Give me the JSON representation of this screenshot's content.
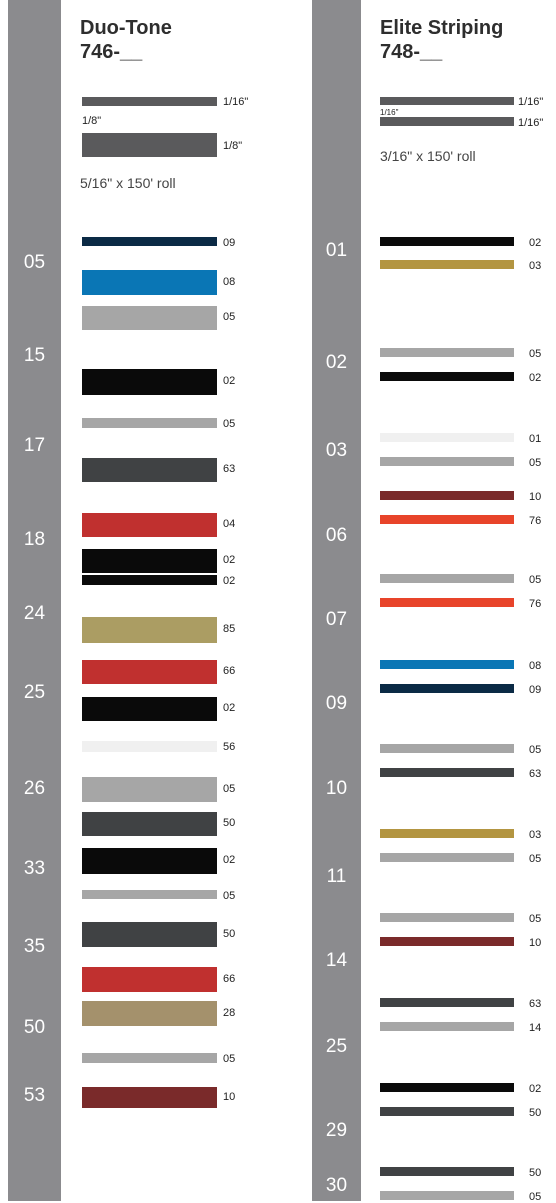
{
  "colors": {
    "band": "#8b8b8e",
    "navy": "#0b2a45",
    "blue": "#0a76b5",
    "silver": "#a6a6a6",
    "black": "#0a0a0a",
    "charcoal": "#404244",
    "red": "#c0302f",
    "gold": "#b39541",
    "gold_sparkle": "#ab9d63",
    "tan": "#a4916c",
    "white": "#f0f0f0",
    "maroon": "#7a2a2a",
    "orange_red": "#e8442a"
  },
  "duo_tone": {
    "title": "Duo-Tone",
    "part": "746-__",
    "size_top": "1/16\"",
    "size_mid": "1/8\"",
    "size_bottom": "1/8\"",
    "roll": "5/16\" x 150' roll",
    "rows": [
      {
        "number": "05",
        "top": {
          "code": "09",
          "color": "navy"
        },
        "bottom": {
          "code": "08",
          "color": "blue"
        }
      },
      {
        "number": "15",
        "top": {
          "code": "05",
          "color": "silver"
        },
        "bottom": {
          "code": "02",
          "color": "black"
        }
      },
      {
        "number": "17",
        "top": {
          "code": "05",
          "color": "silver"
        },
        "bottom": {
          "code": "63",
          "color": "charcoal"
        }
      },
      {
        "number": "18",
        "top": {
          "code": "04",
          "color": "red"
        },
        "bottom": {
          "code": "02",
          "color": "black"
        }
      },
      {
        "number": "24",
        "top": {
          "code": "02",
          "color": "black"
        },
        "bottom": {
          "code": "85",
          "color": "gold_sparkle"
        }
      },
      {
        "number": "25",
        "top": {
          "code": "66",
          "color": "red"
        },
        "bottom": {
          "code": "02",
          "color": "black"
        }
      },
      {
        "number": "26",
        "top": {
          "code": "56",
          "color": "white"
        },
        "bottom": {
          "code": "05",
          "color": "silver"
        }
      },
      {
        "number": "33",
        "top": {
          "code": "50",
          "color": "charcoal"
        },
        "bottom": {
          "code": "02",
          "color": "black"
        }
      },
      {
        "number": "35",
        "top": {
          "code": "05",
          "color": "silver"
        },
        "bottom": {
          "code": "50",
          "color": "charcoal"
        }
      },
      {
        "number": "50",
        "top": {
          "code": "66",
          "color": "red"
        },
        "bottom": {
          "code": "28",
          "color": "tan"
        }
      },
      {
        "number": "53",
        "top": {
          "code": "05",
          "color": "silver"
        },
        "bottom": {
          "code": "10",
          "color": "maroon"
        }
      }
    ]
  },
  "elite": {
    "title": "Elite Striping",
    "part": "748-__",
    "size_top_right": "1/16\"",
    "size_inner": "1/16\"",
    "size_bottom_right": "1/16\"",
    "roll": "3/16\" x 150' roll",
    "rows": [
      {
        "number": "01",
        "top": {
          "code": "02",
          "color": "black"
        },
        "bottom": {
          "code": "03",
          "color": "gold"
        }
      },
      {
        "number": "02",
        "top": {
          "code": "05",
          "color": "silver"
        },
        "bottom": {
          "code": "02",
          "color": "black"
        }
      },
      {
        "number": "03",
        "top": {
          "code": "01",
          "color": "white"
        },
        "bottom": {
          "code": "05",
          "color": "silver"
        }
      },
      {
        "number": "06",
        "top": {
          "code": "10",
          "color": "maroon"
        },
        "bottom": {
          "code": "76",
          "color": "orange_red"
        }
      },
      {
        "number": "07",
        "top": {
          "code": "05",
          "color": "silver"
        },
        "bottom": {
          "code": "76",
          "color": "orange_red"
        }
      },
      {
        "number": "09",
        "top": {
          "code": "08",
          "color": "blue"
        },
        "bottom": {
          "code": "09",
          "color": "navy"
        }
      },
      {
        "number": "10",
        "top": {
          "code": "05",
          "color": "silver"
        },
        "bottom": {
          "code": "63",
          "color": "charcoal"
        }
      },
      {
        "number": "11",
        "top": {
          "code": "03",
          "color": "gold"
        },
        "bottom": {
          "code": "05",
          "color": "silver"
        }
      },
      {
        "number": "14",
        "top": {
          "code": "05",
          "color": "silver"
        },
        "bottom": {
          "code": "10",
          "color": "maroon"
        }
      },
      {
        "number": "25",
        "top": {
          "code": "63",
          "color": "charcoal"
        },
        "bottom": {
          "code": "14",
          "color": "silver"
        }
      },
      {
        "number": "29",
        "top": {
          "code": "02",
          "color": "black"
        },
        "bottom": {
          "code": "50",
          "color": "charcoal"
        }
      },
      {
        "number": "30",
        "top": {
          "code": "50",
          "color": "charcoal"
        },
        "bottom": {
          "code": "05",
          "color": "silver"
        }
      }
    ]
  }
}
